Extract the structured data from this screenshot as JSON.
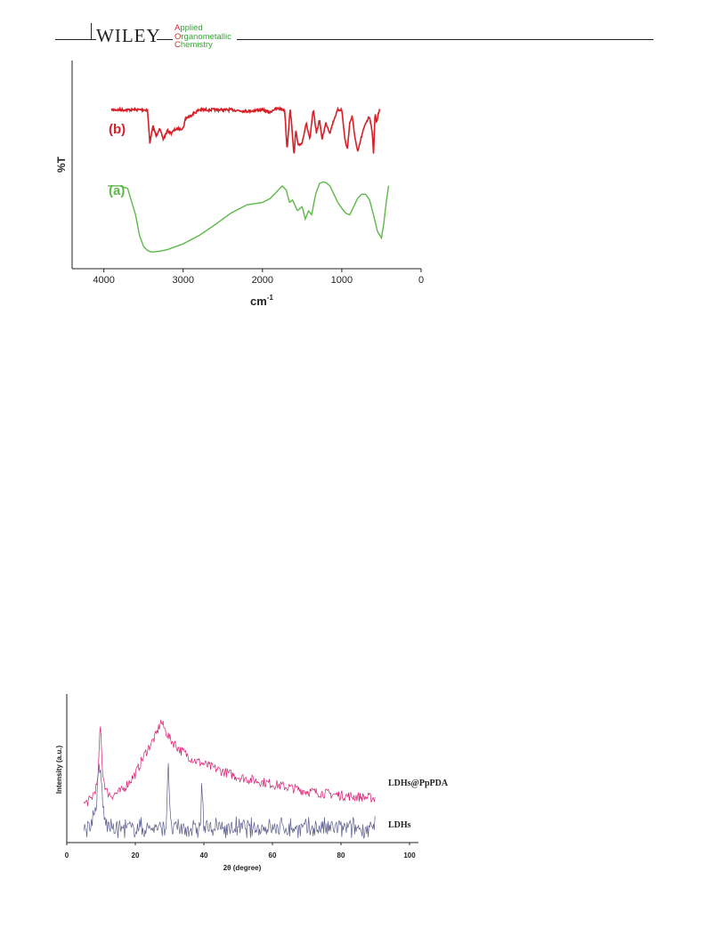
{
  "header": {
    "publisher": "WILEY",
    "journal_lines": [
      {
        "first": "A",
        "rest": "pplied"
      },
      {
        "first": "O",
        "rest": "rganometallic"
      },
      {
        "first": "C",
        "rest": "hemistry"
      }
    ]
  },
  "colors": {
    "ir_b": "#d61f26",
    "ir_a": "#5cb848",
    "xrd_pppda": "#d81b73",
    "xrd_ldh": "#5b5f8c"
  },
  "chart_data": [
    {
      "type": "line",
      "xlabel": "cm",
      "xlabel_sup": "-1",
      "ylabel": "%T",
      "xlim": [
        4400,
        0
      ],
      "x_reversed": true,
      "x_ticks": [
        4000,
        3000,
        2000,
        1000,
        0
      ],
      "x_tick_labels": [
        "4000",
        "3000",
        "2000",
        "1000",
        "0"
      ],
      "series": [
        {
          "name": "(b)",
          "x": [
            3900,
            3600,
            3450,
            3420,
            3380,
            3340,
            3300,
            3250,
            3200,
            3150,
            3100,
            3000,
            2970,
            2920,
            2800,
            2600,
            2400,
            2200,
            2000,
            1900,
            1870,
            1800,
            1720,
            1690,
            1650,
            1600,
            1580,
            1550,
            1500,
            1450,
            1400,
            1380,
            1360,
            1320,
            1280,
            1250,
            1200,
            1150,
            1100,
            1050,
            1000,
            960,
            930,
            900,
            870,
            830,
            800,
            750,
            700,
            650,
            620,
            600,
            580,
            560,
            540,
            520
          ],
          "y": [
            0.1,
            0.1,
            0.1,
            0.6,
            0.35,
            0.5,
            0.38,
            0.55,
            0.42,
            0.45,
            0.4,
            0.38,
            0.23,
            0.2,
            0.1,
            0.1,
            0.1,
            0.12,
            0.1,
            0.14,
            0.1,
            0.08,
            0.1,
            0.7,
            0.08,
            0.8,
            0.4,
            0.65,
            0.6,
            0.3,
            0.55,
            0.3,
            0.1,
            0.45,
            0.25,
            0.55,
            0.3,
            0.45,
            0.25,
            0.1,
            0.1,
            0.55,
            0.7,
            0.3,
            0.2,
            0.55,
            0.75,
            0.5,
            0.3,
            0.2,
            0.4,
            0.75,
            0.15,
            0.3,
            0.15,
            0.1
          ]
        },
        {
          "name": "(a)",
          "x": [
            3950,
            3800,
            3700,
            3600,
            3550,
            3500,
            3450,
            3400,
            3300,
            3200,
            3000,
            2800,
            2600,
            2400,
            2200,
            2000,
            1900,
            1800,
            1750,
            1700,
            1660,
            1620,
            1560,
            1500,
            1460,
            1420,
            1380,
            1330,
            1280,
            1230,
            1200,
            1150,
            1100,
            1050,
            1000,
            950,
            900,
            850,
            800,
            750,
            700,
            650,
            600,
            550,
            500,
            470,
            440,
            410
          ],
          "y": [
            0.15,
            0.15,
            0.18,
            0.5,
            0.75,
            0.88,
            0.93,
            0.95,
            0.94,
            0.92,
            0.85,
            0.75,
            0.62,
            0.48,
            0.38,
            0.35,
            0.3,
            0.2,
            0.15,
            0.2,
            0.35,
            0.32,
            0.45,
            0.4,
            0.55,
            0.45,
            0.5,
            0.25,
            0.12,
            0.1,
            0.11,
            0.15,
            0.25,
            0.35,
            0.42,
            0.48,
            0.5,
            0.4,
            0.3,
            0.25,
            0.25,
            0.32,
            0.5,
            0.7,
            0.78,
            0.6,
            0.35,
            0.15
          ]
        }
      ]
    },
    {
      "type": "line",
      "xlabel": "2θ (degree)",
      "ylabel": "Intensity (a.u.)",
      "xlim": [
        0,
        100
      ],
      "x_ticks": [
        0,
        20,
        40,
        60,
        80,
        100
      ],
      "x_tick_labels": [
        "0",
        "20",
        "40",
        "60",
        "80",
        "100"
      ],
      "series": [
        {
          "name": "LDHs@PpPDA",
          "x": [
            5,
            7,
            9,
            9.8,
            10.5,
            11.5,
            13,
            16,
            20,
            23,
            26,
            27.5,
            28.5,
            30,
            33,
            37,
            42,
            50,
            60,
            70,
            80,
            85,
            90
          ],
          "y": [
            0.24,
            0.27,
            0.38,
            0.8,
            0.45,
            0.33,
            0.3,
            0.33,
            0.45,
            0.6,
            0.72,
            0.82,
            0.77,
            0.7,
            0.62,
            0.55,
            0.5,
            0.43,
            0.38,
            0.33,
            0.3,
            0.29,
            0.28
          ]
        },
        {
          "name": "LDHs",
          "x": [
            5,
            7,
            8.5,
            9.5,
            10,
            11,
            13,
            20,
            29,
            29.6,
            30.2,
            39,
            39.4,
            40,
            50,
            60,
            70,
            80,
            90
          ],
          "y": [
            0.08,
            0.09,
            0.2,
            0.5,
            0.42,
            0.12,
            0.07,
            0.07,
            0.07,
            0.6,
            0.07,
            0.07,
            0.4,
            0.07,
            0.07,
            0.07,
            0.07,
            0.07,
            0.07
          ]
        }
      ]
    }
  ]
}
